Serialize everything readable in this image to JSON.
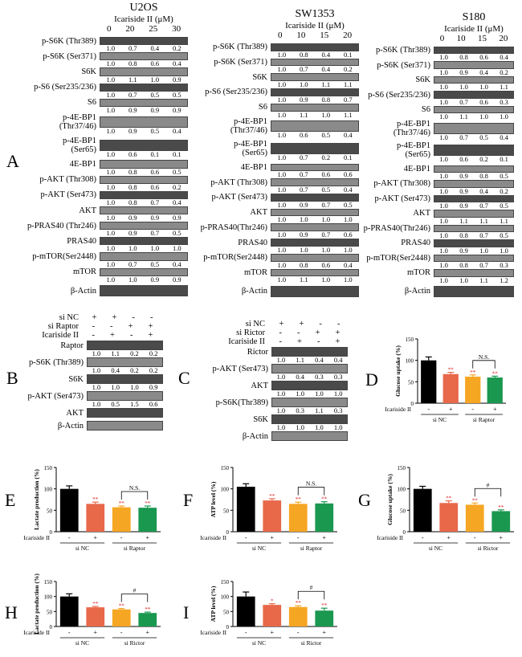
{
  "panelA": {
    "letter": "A",
    "columns": [
      {
        "title": "U2OS",
        "conc_label": "Icariside II  (μM)",
        "concs": [
          "0",
          "20",
          "25",
          "30"
        ],
        "rows": [
          {
            "label": "p-S6K (Thr389)",
            "vals": [
              "1.0",
              "0.7",
              "0.4",
              "0.2"
            ]
          },
          {
            "label": "p-S6K (Ser371)",
            "vals": [
              "1.0",
              "0.8",
              "0.6",
              "0.4"
            ]
          },
          {
            "label": "S6K",
            "vals": [
              "1.0",
              "1.1",
              "1.0",
              "0.9"
            ]
          },
          {
            "label": "p-S6 (Ser235/236)",
            "vals": [
              "1.0",
              "0.7",
              "0.5",
              "0.5"
            ]
          },
          {
            "label": "S6",
            "vals": [
              "1.0",
              "0.9",
              "0.9",
              "0.9"
            ]
          },
          {
            "label": "p-4E-BP1\n(Thr37/46)",
            "vals": [
              "1.0",
              "0.9",
              "0.5",
              "0.4"
            ]
          },
          {
            "label": "p-4E-BP1\n(Ser65)",
            "vals": [
              "1.0",
              "0.6",
              "0.1",
              "0.1"
            ]
          },
          {
            "label": "4E-BP1",
            "vals": [
              "1.0",
              "0.8",
              "0.6",
              "0.5"
            ]
          },
          {
            "label": "p-AKT (Thr308)",
            "vals": [
              "1.0",
              "0.8",
              "0.6",
              "0.2"
            ]
          },
          {
            "label": "p-AKT (Ser473)",
            "vals": [
              "1.0",
              "0.8",
              "0.7",
              "0.4"
            ]
          },
          {
            "label": "AKT",
            "vals": [
              "1.0",
              "0.9",
              "0.9",
              "0.9"
            ]
          },
          {
            "label": "p-PRAS40 (Thr246)",
            "vals": [
              "1.0",
              "0.9",
              "0.7",
              "0.5"
            ]
          },
          {
            "label": "PRAS40",
            "vals": [
              "1.0",
              "1.0",
              "1.0",
              "1.0"
            ]
          },
          {
            "label": "p-mTOR(Ser2448)",
            "vals": [
              "1.0",
              "0.7",
              "0.5",
              "0.4"
            ]
          },
          {
            "label": "mTOR",
            "vals": [
              "1.0",
              "1.0",
              "0.9",
              "0.9"
            ]
          },
          {
            "label": "β-Actin",
            "vals": []
          }
        ]
      },
      {
        "title": "SW1353",
        "conc_label": "Icariside II  (μM)",
        "concs": [
          "0",
          "10",
          "15",
          "20"
        ],
        "rows": [
          {
            "label": "p-S6K (Thr389)",
            "vals": [
              "1.0",
              "0.8",
              "0.4",
              "0.1"
            ]
          },
          {
            "label": "p-S6K (Ser371)",
            "vals": [
              "1.0",
              "0.7",
              "0.4",
              "0.2"
            ]
          },
          {
            "label": "S6K",
            "vals": [
              "1.0",
              "1.0",
              "1.1",
              "1.1"
            ]
          },
          {
            "label": "p-S6 (Ser235/236)",
            "vals": [
              "1.0",
              "0.9",
              "0.8",
              "0.7"
            ]
          },
          {
            "label": "S6",
            "vals": [
              "1.0",
              "1.1",
              "1.0",
              "1.1"
            ]
          },
          {
            "label": "p-4E-BP1\n(Thr37/46)",
            "vals": [
              "1.0",
              "0.6",
              "0.5",
              "0.4"
            ]
          },
          {
            "label": "p-4E-BP1\n(Ser65)",
            "vals": [
              "1.0",
              "0.7",
              "0.2",
              "0.1"
            ]
          },
          {
            "label": "4E-BP1",
            "vals": [
              "1.0",
              "0.7",
              "0.6",
              "0.6"
            ]
          },
          {
            "label": "p-AKT (Thr308)",
            "vals": [
              "1.0",
              "0.7",
              "0.5",
              "0.4"
            ]
          },
          {
            "label": "p-AKT (Ser473)",
            "vals": [
              "1.0",
              "0.9",
              "0.7",
              "0.5"
            ]
          },
          {
            "label": "AKT",
            "vals": [
              "1.0",
              "1.0",
              "1.0",
              "1.0"
            ]
          },
          {
            "label": "p-PRAS40(Thr246)",
            "vals": [
              "1.0",
              "0.9",
              "0.7",
              "0.6"
            ]
          },
          {
            "label": "PRAS40",
            "vals": [
              "1.0",
              "1.0",
              "1.0",
              "1.0"
            ]
          },
          {
            "label": "p-mTOR(Ser2448)",
            "vals": [
              "1.0",
              "0.8",
              "0.6",
              "0.4"
            ]
          },
          {
            "label": "mTOR",
            "vals": [
              "1.0",
              "1.1",
              "1.0",
              "1.0"
            ]
          },
          {
            "label": "β-Actin",
            "vals": []
          }
        ]
      },
      {
        "title": "S180",
        "conc_label": "Icariside II  (μM)",
        "concs": [
          "0",
          "10",
          "15",
          "20"
        ],
        "rows": [
          {
            "label": "p-S6K (Thr389)",
            "vals": [
              "1.0",
              "0.8",
              "0.6",
              "0.4"
            ]
          },
          {
            "label": "p-S6K (Ser371)",
            "vals": [
              "1.0",
              "0.9",
              "0.4",
              "0.2"
            ]
          },
          {
            "label": "S6K",
            "vals": [
              "1.0",
              "1.0",
              "1.0",
              "1.1"
            ]
          },
          {
            "label": "p-S6 (Ser235/236)",
            "vals": [
              "1.0",
              "0.7",
              "0.6",
              "0.3"
            ]
          },
          {
            "label": "S6",
            "vals": [
              "1.0",
              "1.1",
              "1.0",
              "1.0"
            ]
          },
          {
            "label": "p-4E-BP1\n(Thr37/46)",
            "vals": [
              "1.0",
              "0.7",
              "0.5",
              "0.4"
            ]
          },
          {
            "label": "p-4E-BP1\n(Ser65)",
            "vals": [
              "1.0",
              "0.6",
              "0.2",
              "0.1"
            ]
          },
          {
            "label": "4E-BP1",
            "vals": [
              "1.0",
              "0.9",
              "0.8",
              "0.5"
            ]
          },
          {
            "label": "p-AKT (Thr308)",
            "vals": [
              "1.0",
              "0.9",
              "0.4",
              "0.2"
            ]
          },
          {
            "label": "p-AKT (Ser473)",
            "vals": [
              "1.0",
              "0.9",
              "0.7",
              "0.5"
            ]
          },
          {
            "label": "AKT",
            "vals": [
              "1.0",
              "1.1",
              "1.1",
              "1.1"
            ]
          },
          {
            "label": "p-PRAS40(Thr246)",
            "vals": [
              "1.0",
              "0.8",
              "0.7",
              "0.5"
            ]
          },
          {
            "label": "PRAS40",
            "vals": [
              "1.0",
              "0.9",
              "1.0",
              "1.0"
            ]
          },
          {
            "label": "p-mTOR(Ser2448)",
            "vals": [
              "1.0",
              "0.8",
              "0.7",
              "0.3"
            ]
          },
          {
            "label": "mTOR",
            "vals": [
              "1.0",
              "1.0",
              "1.1",
              "1.2"
            ]
          },
          {
            "label": "β-Actin",
            "vals": []
          }
        ]
      }
    ]
  },
  "panelB": {
    "letter": "B",
    "conditions": [
      {
        "label": "si NC",
        "signs": [
          "+",
          "+",
          "-",
          "-"
        ]
      },
      {
        "label": "si Raptor",
        "signs": [
          "-",
          "-",
          "+",
          "+"
        ]
      },
      {
        "label": "Icariside II",
        "signs": [
          "-",
          "+",
          "-",
          "+"
        ]
      }
    ],
    "rows": [
      {
        "label": "Raptor",
        "vals": [
          "1.0",
          "1.1",
          "0.2",
          "0.2"
        ]
      },
      {
        "label": "p-S6K (Thr389)",
        "vals": [
          "1.0",
          "0.4",
          "0.2",
          "0.2"
        ]
      },
      {
        "label": "S6K",
        "vals": [
          "1.0",
          "1.0",
          "1.0",
          "0.9"
        ]
      },
      {
        "label": "p-AKT (Ser473)",
        "vals": [
          "1.0",
          "0.5",
          "1.5",
          "0.6"
        ]
      },
      {
        "label": "AKT",
        "vals": []
      },
      {
        "label": "β-Actin",
        "vals": []
      }
    ]
  },
  "panelC": {
    "letter": "C",
    "conditions": [
      {
        "label": "si NC",
        "signs": [
          "+",
          "+",
          "-",
          "-"
        ]
      },
      {
        "label": "si Rictor",
        "signs": [
          "-",
          "-",
          "+",
          "+"
        ]
      },
      {
        "label": "Icariside II",
        "signs": [
          "-",
          "+",
          "-",
          "+"
        ]
      }
    ],
    "rows": [
      {
        "label": "Rictor",
        "vals": [
          "1.0",
          "1.1",
          "0.4",
          "0.4"
        ]
      },
      {
        "label": "p-AKT (Ser473)",
        "vals": [
          "1.0",
          "0.4",
          "0.3",
          "0.3"
        ]
      },
      {
        "label": "AKT",
        "vals": [
          "1.0",
          "1.0",
          "1.0",
          "1.0"
        ]
      },
      {
        "label": "p-S6K(Thr389)",
        "vals": [
          "1.0",
          "0.3",
          "1.1",
          "0.3"
        ]
      },
      {
        "label": "S6K",
        "vals": [
          "1.0",
          "1.0",
          "1.0",
          "1.0"
        ]
      },
      {
        "label": "β-Actin",
        "vals": []
      }
    ]
  },
  "chart_data": [
    {
      "panel": "D",
      "type": "bar",
      "ylabel": "Glucose uptake (%)",
      "yticks": [
        0,
        50,
        100,
        150
      ],
      "ylim": [
        0,
        150
      ],
      "values": [
        100,
        68,
        62,
        60
      ],
      "errors": [
        8,
        4,
        4,
        3
      ],
      "stars": [
        "",
        "**",
        "**",
        "**"
      ],
      "treatment_label": "Icariside II",
      "signs": [
        "-",
        "+",
        "-",
        "+"
      ],
      "groups": [
        "si NC",
        "si Raptor"
      ],
      "bracket": "N.S.",
      "colors": [
        "#000000",
        "#e8684a",
        "#f5a623",
        "#1a9850"
      ]
    },
    {
      "panel": "E",
      "type": "bar",
      "ylabel": "Lactate production (%)",
      "yticks": [
        0,
        50,
        100,
        150
      ],
      "ylim": [
        0,
        150
      ],
      "values": [
        100,
        65,
        57,
        56
      ],
      "errors": [
        7,
        4,
        3,
        4
      ],
      "stars": [
        "",
        "**",
        "**",
        "**"
      ],
      "treatment_label": "Icariside II",
      "signs": [
        "-",
        "+",
        "-",
        "+"
      ],
      "groups": [
        "si NC",
        "si Raptor"
      ],
      "bracket": "N.S.",
      "colors": [
        "#000000",
        "#e8684a",
        "#f5a623",
        "#1a9850"
      ]
    },
    {
      "panel": "F",
      "type": "bar",
      "ylabel": "ATP level (%)",
      "yticks": [
        0,
        50,
        100,
        150
      ],
      "ylim": [
        0,
        150
      ],
      "values": [
        105,
        73,
        65,
        66
      ],
      "errors": [
        7,
        4,
        4,
        4
      ],
      "stars": [
        "",
        "**",
        "**",
        "**"
      ],
      "treatment_label": "Icariside II",
      "signs": [
        "-",
        "+",
        "-",
        "+"
      ],
      "groups": [
        "si NC",
        "si Raptor"
      ],
      "bracket": "N.S.",
      "colors": [
        "#000000",
        "#e8684a",
        "#f5a623",
        "#1a9850"
      ]
    },
    {
      "panel": "G",
      "type": "bar",
      "ylabel": "Glucose uptake (%)",
      "yticks": [
        0,
        50,
        100,
        150
      ],
      "ylim": [
        0,
        150
      ],
      "values": [
        100,
        67,
        63,
        48
      ],
      "errors": [
        6,
        5,
        4,
        3
      ],
      "stars": [
        "",
        "**",
        "**",
        "**"
      ],
      "treatment_label": "Icariside II",
      "signs": [
        "-",
        "+",
        "-",
        "+"
      ],
      "groups": [
        "si NC",
        "si Rictor"
      ],
      "bracket": "#",
      "colors": [
        "#000000",
        "#e8684a",
        "#f5a623",
        "#1a9850"
      ]
    },
    {
      "panel": "H",
      "type": "bar",
      "ylabel": "Lactate production (%)",
      "yticks": [
        0,
        50,
        100,
        150
      ],
      "ylim": [
        0,
        150
      ],
      "values": [
        100,
        64,
        57,
        45
      ],
      "errors": [
        9,
        3,
        3,
        3
      ],
      "stars": [
        "",
        "**",
        "**",
        "**"
      ],
      "treatment_label": "Icariside II",
      "signs": [
        "-",
        "+",
        "-",
        "+"
      ],
      "groups": [
        "si NC",
        "si Rictor"
      ],
      "bracket": "#",
      "colors": [
        "#000000",
        "#e8684a",
        "#f5a623",
        "#1a9850"
      ]
    },
    {
      "panel": "I",
      "type": "bar",
      "ylabel": "ATP level (%)",
      "yticks": [
        0,
        50,
        100,
        150
      ],
      "ylim": [
        0,
        150
      ],
      "values": [
        100,
        72,
        65,
        53
      ],
      "errors": [
        15,
        4,
        4,
        8
      ],
      "stars": [
        "",
        "*",
        "**",
        "**"
      ],
      "treatment_label": "Icariside II",
      "signs": [
        "-",
        "+",
        "-",
        "+"
      ],
      "groups": [
        "si NC",
        "si Rictor"
      ],
      "bracket": "#",
      "colors": [
        "#000000",
        "#e8684a",
        "#f5a623",
        "#1a9850"
      ]
    }
  ]
}
